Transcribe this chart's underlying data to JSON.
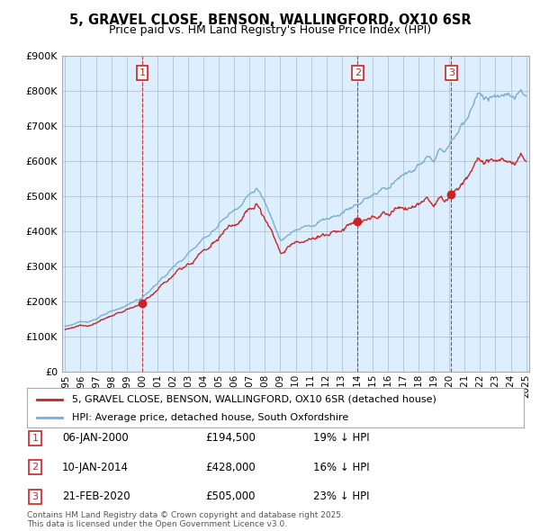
{
  "title": "5, GRAVEL CLOSE, BENSON, WALLINGFORD, OX10 6SR",
  "subtitle": "Price paid vs. HM Land Registry's House Price Index (HPI)",
  "sale_label": "5, GRAVEL CLOSE, BENSON, WALLINGFORD, OX10 6SR (detached house)",
  "hpi_label": "HPI: Average price, detached house, South Oxfordshire",
  "footer_line1": "Contains HM Land Registry data © Crown copyright and database right 2025.",
  "footer_line2": "This data is licensed under the Open Government Licence v3.0.",
  "sales": [
    {
      "num": 1,
      "date_num": 2000.01,
      "price": 194500,
      "label": "06-JAN-2000",
      "price_str": "£194,500",
      "pct": "19% ↓ HPI"
    },
    {
      "num": 2,
      "date_num": 2014.03,
      "price": 428000,
      "label": "10-JAN-2014",
      "price_str": "£428,000",
      "pct": "16% ↓ HPI"
    },
    {
      "num": 3,
      "date_num": 2020.12,
      "price": 505000,
      "label": "21-FEB-2020",
      "price_str": "£505,000",
      "pct": "23% ↓ HPI"
    }
  ],
  "ylim": [
    0,
    900000
  ],
  "xlim": [
    1994.8,
    2025.2
  ],
  "yticks": [
    0,
    100000,
    200000,
    300000,
    400000,
    500000,
    600000,
    700000,
    800000,
    900000
  ],
  "ytick_labels": [
    "£0",
    "£100K",
    "£200K",
    "£300K",
    "£400K",
    "£500K",
    "£600K",
    "£700K",
    "£800K",
    "£900K"
  ],
  "xticks": [
    1995,
    1996,
    1997,
    1998,
    1999,
    2000,
    2001,
    2002,
    2003,
    2004,
    2005,
    2006,
    2007,
    2008,
    2009,
    2010,
    2011,
    2012,
    2013,
    2014,
    2015,
    2016,
    2017,
    2018,
    2019,
    2020,
    2021,
    2022,
    2023,
    2024,
    2025
  ],
  "hpi_color": "#7aadd4",
  "sale_color": "#cc2222",
  "bg_plot_color": "#ddeeff",
  "background_color": "#ffffff",
  "grid_color": "#aabbcc"
}
